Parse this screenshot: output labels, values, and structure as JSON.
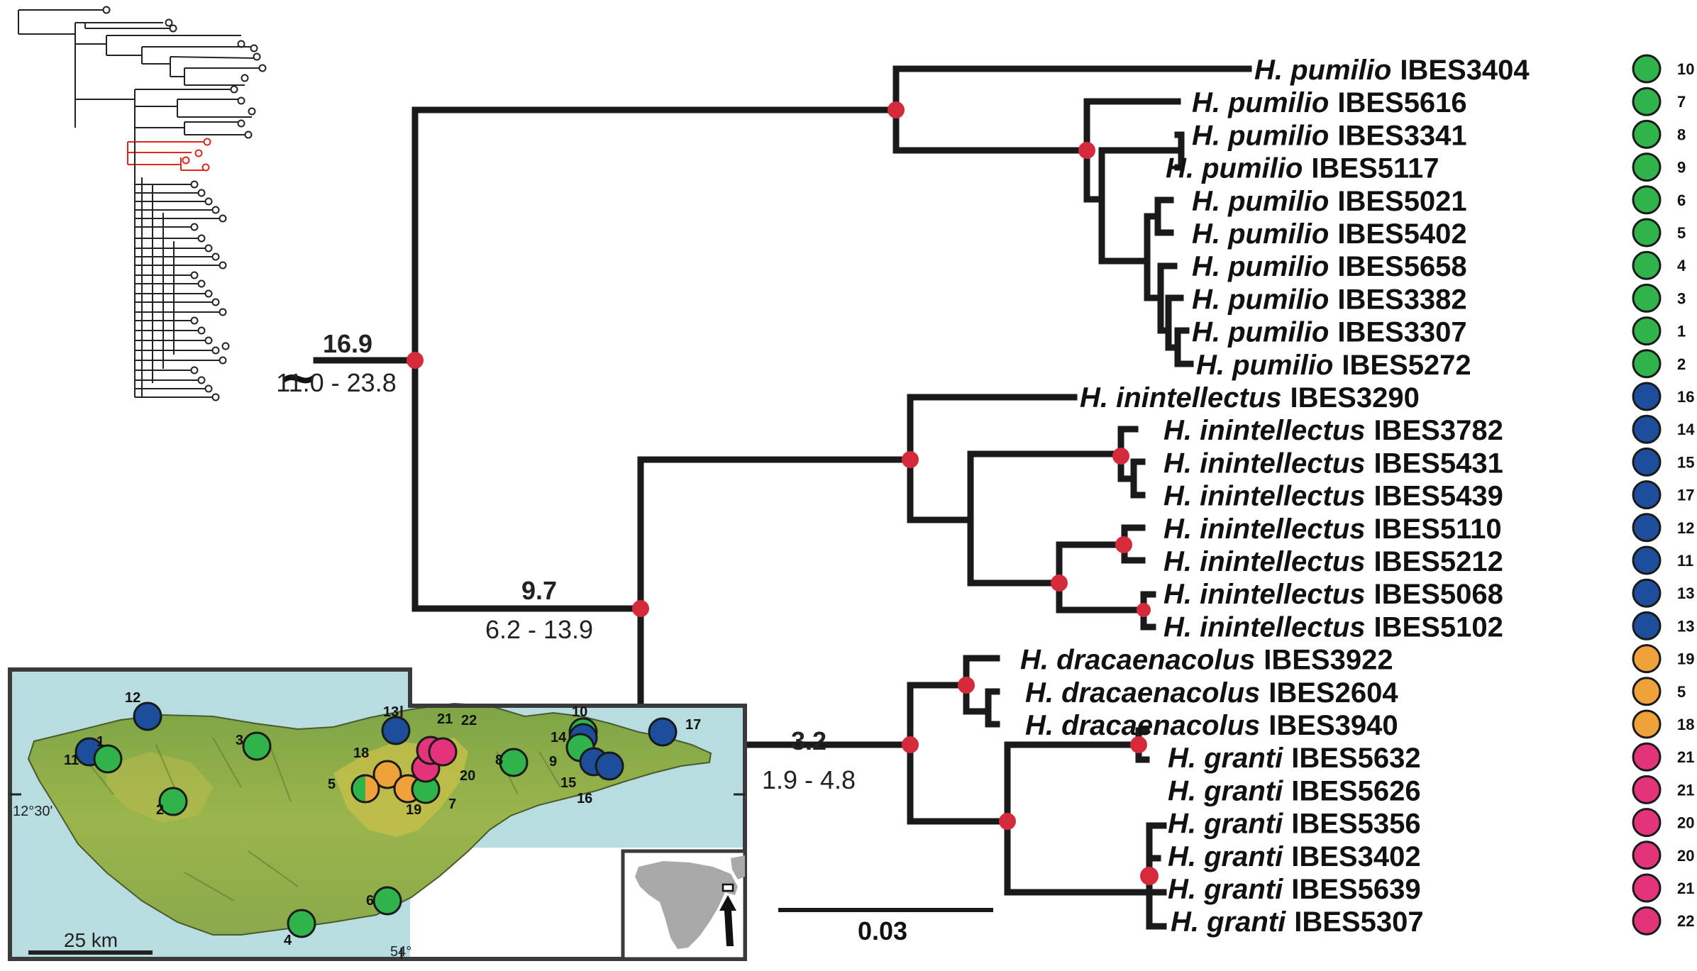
{
  "colors": {
    "branch": "#1a1a1a",
    "node": "#d42a3c",
    "green": "#2fb34a",
    "blue": "#1c4e9c",
    "orange": "#f0a23a",
    "pink": "#e3337a",
    "sea": "#b7dde0",
    "land": "#8fb04a",
    "highland": "#c8c24a",
    "overview_highlight": "#e0261f"
  },
  "taxa": [
    {
      "genus": "H. pumilio",
      "id": "IBES3404",
      "locality": "10",
      "color": "green"
    },
    {
      "genus": "H. pumilio",
      "id": "IBES5616",
      "locality": "7",
      "color": "green"
    },
    {
      "genus": "H. pumilio",
      "id": "IBES3341",
      "locality": "8",
      "color": "green"
    },
    {
      "genus": "H. pumilio",
      "id": "IBES5117",
      "locality": "9",
      "color": "green"
    },
    {
      "genus": "H. pumilio",
      "id": "IBES5021",
      "locality": "6",
      "color": "green"
    },
    {
      "genus": "H. pumilio",
      "id": "IBES5402",
      "locality": "5",
      "color": "green"
    },
    {
      "genus": "H. pumilio",
      "id": "IBES5658",
      "locality": "4",
      "color": "green"
    },
    {
      "genus": "H. pumilio",
      "id": "IBES3382",
      "locality": "3",
      "color": "green"
    },
    {
      "genus": "H. pumilio",
      "id": "IBES3307",
      "locality": "1",
      "color": "green"
    },
    {
      "genus": "H. pumilio",
      "id": "IBES5272",
      "locality": "2",
      "color": "green"
    },
    {
      "genus": "H. inintellectus",
      "id": "IBES3290",
      "locality": "16",
      "color": "blue"
    },
    {
      "genus": "H. inintellectus",
      "id": "IBES3782",
      "locality": "14",
      "color": "blue"
    },
    {
      "genus": "H. inintellectus",
      "id": "IBES5431",
      "locality": "15",
      "color": "blue"
    },
    {
      "genus": "H. inintellectus",
      "id": "IBES5439",
      "locality": "17",
      "color": "blue"
    },
    {
      "genus": "H. inintellectus",
      "id": "IBES5110",
      "locality": "12",
      "color": "blue"
    },
    {
      "genus": "H. inintellectus",
      "id": "IBES5212",
      "locality": "11",
      "color": "blue"
    },
    {
      "genus": "H. inintellectus",
      "id": "IBES5068",
      "locality": "13",
      "color": "blue"
    },
    {
      "genus": "H. inintellectus",
      "id": "IBES5102",
      "locality": "13",
      "color": "blue"
    },
    {
      "genus": "H. dracaenacolus",
      "id": "IBES3922",
      "locality": "19",
      "color": "orange"
    },
    {
      "genus": "H. dracaenacolus",
      "id": "IBES2604",
      "locality": "5",
      "color": "orange"
    },
    {
      "genus": "H. dracaenacolus",
      "id": "IBES3940",
      "locality": "18",
      "color": "orange"
    },
    {
      "genus": "H. granti",
      "id": "IBES5632",
      "locality": "21",
      "color": "pink"
    },
    {
      "genus": "H. granti",
      "id": "IBES5626",
      "locality": "21",
      "color": "pink"
    },
    {
      "genus": "H. granti",
      "id": "IBES5356",
      "locality": "20",
      "color": "pink"
    },
    {
      "genus": "H. granti",
      "id": "IBES3402",
      "locality": "20",
      "color": "pink"
    },
    {
      "genus": "H. granti",
      "id": "IBES5639",
      "locality": "21",
      "color": "pink"
    },
    {
      "genus": "H. granti",
      "id": "IBES5307",
      "locality": "22",
      "color": "pink"
    }
  ],
  "node_ages": [
    {
      "age": "16.9",
      "hpd": "11.0 - 23.8"
    },
    {
      "age": "9.7",
      "hpd": "6.2 - 13.9"
    },
    {
      "age": "3.2",
      "hpd": "1.9 - 4.8"
    }
  ],
  "root_break_symbol": "~",
  "scale_bar": {
    "label": "0.03"
  },
  "map": {
    "scale_label": "25 km",
    "lat_label": "12°30'",
    "lon_label": "54°",
    "sites": [
      {
        "label": "1",
        "color": "green"
      },
      {
        "label": "2",
        "color": "green"
      },
      {
        "label": "3",
        "color": "green"
      },
      {
        "label": "4",
        "color": "green"
      },
      {
        "label": "5",
        "color": "green",
        "second_color": "orange"
      },
      {
        "label": "6",
        "color": "green"
      },
      {
        "label": "7",
        "color": "green"
      },
      {
        "label": "8",
        "color": "green"
      },
      {
        "label": "9",
        "color": "green"
      },
      {
        "label": "10",
        "color": "green"
      },
      {
        "label": "11",
        "color": "blue"
      },
      {
        "label": "12",
        "color": "blue"
      },
      {
        "label": "13",
        "color": "blue"
      },
      {
        "label": "14",
        "color": "blue"
      },
      {
        "label": "15",
        "color": "blue"
      },
      {
        "label": "16",
        "color": "blue"
      },
      {
        "label": "17",
        "color": "blue"
      },
      {
        "label": "18",
        "color": "orange"
      },
      {
        "label": "19",
        "color": "orange"
      },
      {
        "label": "20",
        "color": "pink"
      },
      {
        "label": "21",
        "color": "pink"
      },
      {
        "label": "22",
        "color": "pink"
      }
    ]
  }
}
